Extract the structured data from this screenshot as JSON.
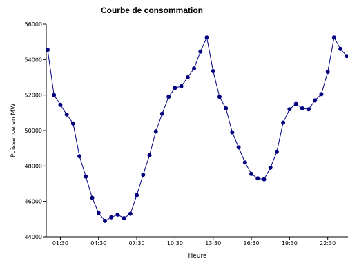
{
  "chart_data": {
    "type": "line",
    "title": "Courbe de consommation",
    "xlabel": "Heure",
    "ylabel": "Puissance en MW",
    "ylim": [
      44000,
      56000
    ],
    "yticks": [
      "44000",
      "46000",
      "48000",
      "50000",
      "52000",
      "54000",
      "56000"
    ],
    "xticks": [
      {
        "label": "01:30",
        "index": 2
      },
      {
        "label": "04:30",
        "index": 8
      },
      {
        "label": "07:30",
        "index": 14
      },
      {
        "label": "10:30",
        "index": 20
      },
      {
        "label": "13:30",
        "index": 26
      },
      {
        "label": "16:30",
        "index": 32
      },
      {
        "label": "19:30",
        "index": 38
      },
      {
        "label": "22:30",
        "index": 44
      }
    ],
    "grid": false,
    "series": [
      {
        "color": "#00007f",
        "values": [
          54550,
          52000,
          51450,
          50900,
          50400,
          48550,
          47400,
          46200,
          45350,
          44900,
          45100,
          45250,
          45050,
          45300,
          46350,
          47500,
          48600,
          49950,
          50950,
          51900,
          52400,
          52500,
          53000,
          53500,
          54450,
          55250,
          53350,
          51900,
          51250,
          49900,
          49050,
          48200,
          47550,
          47300,
          47250,
          47900,
          48800,
          50450,
          51200,
          51500,
          51250,
          51200,
          51700,
          52050,
          53300,
          55250,
          54600,
          54200
        ]
      }
    ]
  }
}
